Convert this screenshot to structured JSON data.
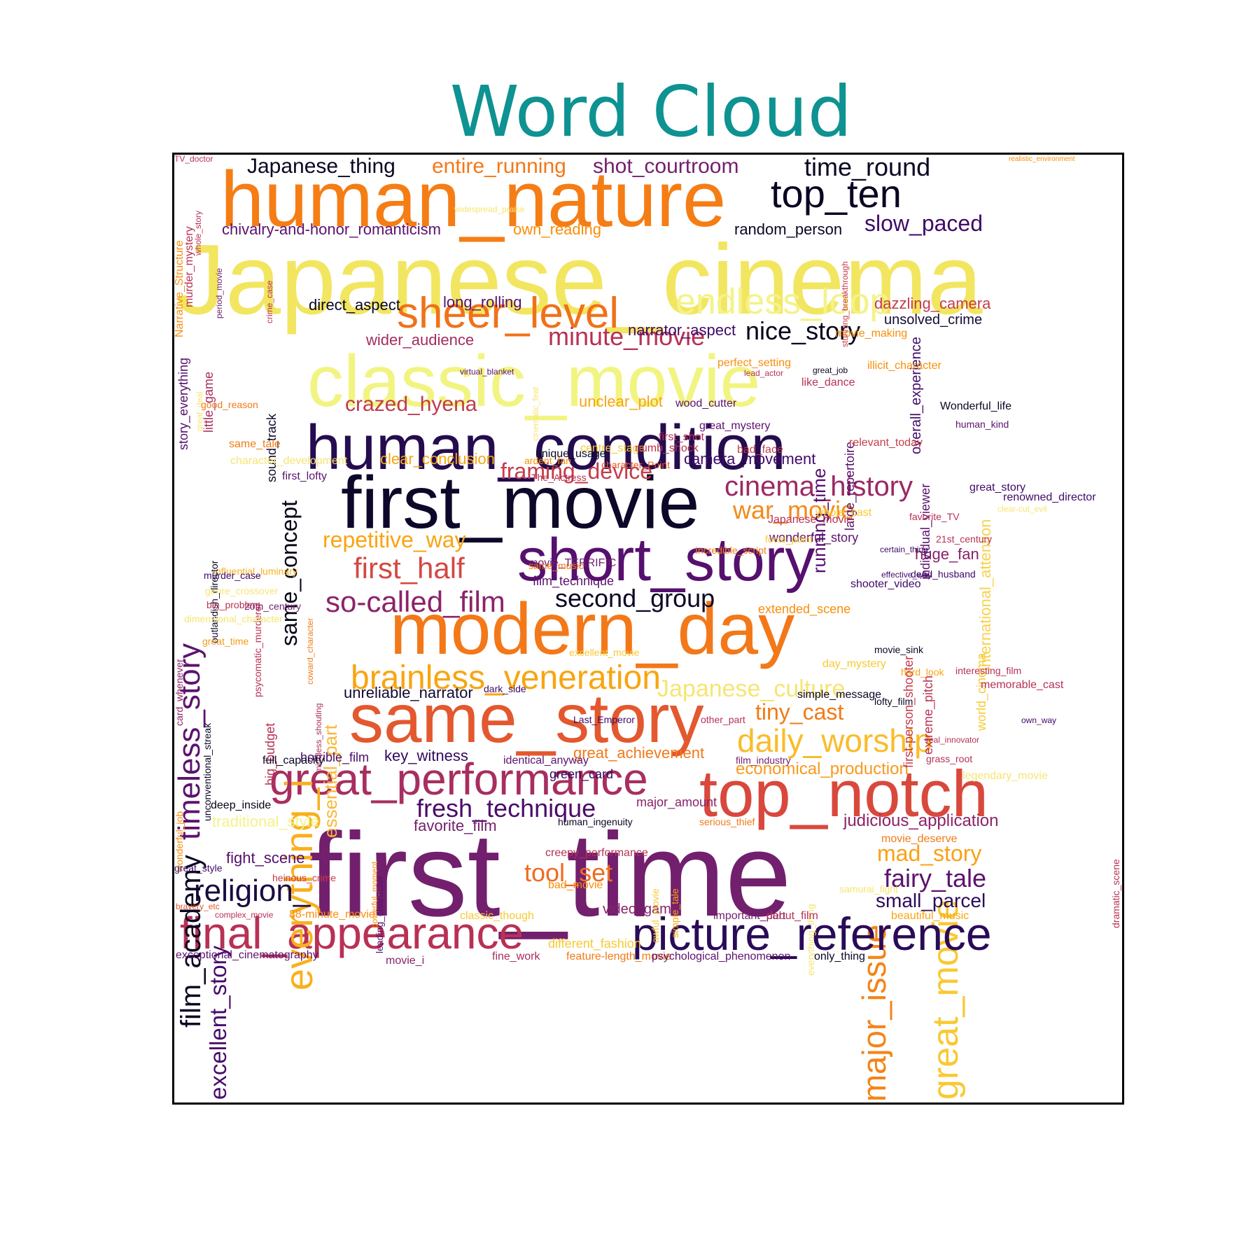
{
  "chart_data": {
    "type": "wordcloud",
    "title": "Word Cloud",
    "colormap": "inferno",
    "title_color": "#0e9292",
    "words": [
      {
        "text": "Japanese_cinema",
        "color": "#f2e661"
      },
      {
        "text": "first_time",
        "color": "#721f6e"
      },
      {
        "text": "human_nature",
        "color": "#f57d15"
      },
      {
        "text": "first_movie",
        "color": "#0d0829"
      },
      {
        "text": "excellent_story",
        "color": "#480b6a"
      },
      {
        "text": "major_issue",
        "color": "#f48417"
      },
      {
        "text": "human_condition",
        "color": "#240c4f"
      },
      {
        "text": "classic_movie",
        "color": "#f2f482"
      },
      {
        "text": "modern_day",
        "color": "#f37819"
      },
      {
        "text": "same_story",
        "color": "#e3582e"
      },
      {
        "text": "top_notch",
        "color": "#d9483d"
      },
      {
        "text": "short_story",
        "color": "#56106e"
      },
      {
        "text": "great_movie",
        "color": "#f8c932"
      },
      {
        "text": "picture_reference",
        "color": "#2a0b58"
      },
      {
        "text": "final_appearance",
        "color": "#b83155"
      },
      {
        "text": "great_performance",
        "color": "#a82e5f"
      },
      {
        "text": "sheer_level",
        "color": "#f07119"
      },
      {
        "text": "top_ten",
        "color": "#0a0623"
      },
      {
        "text": "everything_i",
        "color": "#f9b01e"
      },
      {
        "text": "endless_loop",
        "color": "#f3f38a"
      },
      {
        "text": "timeless_story",
        "color": "#5c126e"
      },
      {
        "text": "brainless_veneration",
        "color": "#f8a512"
      },
      {
        "text": "daily_worship",
        "color": "#f9bc2a"
      },
      {
        "text": "religion_",
        "color": "#1b0c41"
      },
      {
        "text": "film_academy",
        "color": "#0b0724"
      },
      {
        "text": "same_concept",
        "color": "#050417"
      },
      {
        "text": "so-called_film",
        "color": "#8c2369"
      },
      {
        "text": "first_half",
        "color": "#d44842"
      },
      {
        "text": "cinema_history",
        "color": "#9b2964"
      },
      {
        "text": "fresh_technique",
        "color": "#4a0c6b"
      },
      {
        "text": "repetitive_way",
        "color": "#f8a511"
      },
      {
        "text": "second_group",
        "color": "#0b0724"
      },
      {
        "text": "Japanese_culture",
        "color": "#f6e574"
      },
      {
        "text": "minute_movie",
        "color": "#b83155"
      },
      {
        "text": "nice_story",
        "color": "#06051d"
      },
      {
        "text": "war_movie",
        "color": "#f38a1a"
      },
      {
        "text": "tool_set",
        "color": "#f06b20"
      },
      {
        "text": "framing_device",
        "color": "#c53c4b"
      },
      {
        "text": "crazed_hyena",
        "color": "#c03a4e"
      },
      {
        "text": "fairy_tale",
        "color": "#5c126e"
      },
      {
        "text": "mad_story",
        "color": "#f9a116"
      },
      {
        "text": "tiny_cast",
        "color": "#f07b18"
      },
      {
        "text": "time_round",
        "color": "#0a0722"
      },
      {
        "text": "slow_paced",
        "color": "#3f0a68"
      },
      {
        "text": "shot_courtroom",
        "color": "#721f6e"
      },
      {
        "text": "entire_running",
        "color": "#f37819"
      },
      {
        "text": "Japanese_thing",
        "color": "#0a0722"
      },
      {
        "text": "running_time",
        "color": "#56106e"
      },
      {
        "text": "international_attention",
        "color": "#f8d14d"
      },
      {
        "text": "small_parcel",
        "color": "#2c0b5a"
      },
      {
        "text": "essential_part",
        "color": "#fbb735"
      },
      {
        "text": "economical_production",
        "color": "#f79a1c"
      },
      {
        "text": "judicious_application",
        "color": "#8c2369"
      },
      {
        "text": "chivalry-and-honor_romanticism",
        "color": "#5c126e"
      },
      {
        "text": "dazzling_camera",
        "color": "#c53c4b"
      },
      {
        "text": "unclear_plot",
        "color": "#f8a512"
      },
      {
        "text": "wider_audience",
        "color": "#a42c60"
      },
      {
        "text": "long_rolling",
        "color": "#56106e"
      },
      {
        "text": "own_reading",
        "color": "#f98e09"
      },
      {
        "text": "direct_aspect",
        "color": "#0b0724"
      },
      {
        "text": "narrator_aspect",
        "color": "#3f0a68"
      },
      {
        "text": "unsolved_crime",
        "color": "#140b34"
      },
      {
        "text": "random_person",
        "color": "#0b0724"
      },
      {
        "text": "great_achievement",
        "color": "#f37819"
      },
      {
        "text": "clear_conclusion",
        "color": "#f8a511"
      },
      {
        "text": "camera_movement",
        "color": "#3f0a68"
      },
      {
        "text": "huge_fan",
        "color": "#89226a"
      },
      {
        "text": "favorite_film",
        "color": "#721f6e"
      },
      {
        "text": "fight_scene",
        "color": "#56106e"
      },
      {
        "text": "key_witness",
        "color": "#320a5e"
      },
      {
        "text": "unreliable_narrator",
        "color": "#120a32"
      },
      {
        "text": "traditional_style",
        "color": "#f3f38a"
      },
      {
        "text": "overall_experience",
        "color": "#3f0a68"
      },
      {
        "text": "video_game",
        "color": "#89226a"
      },
      {
        "text": "sound_track",
        "color": "#0d0829"
      },
      {
        "text": "little_game",
        "color": "#a82e5f"
      },
      {
        "text": "story_everything",
        "color": "#56106e"
      },
      {
        "text": "film_technique",
        "color": "#5c126e"
      },
      {
        "text": "horrible_film",
        "color": "#480b6a"
      },
      {
        "text": "green_card",
        "color": "#320a5e"
      },
      {
        "text": "major_amount",
        "color": "#89226a"
      },
      {
        "text": "big_budget",
        "color": "#b83155"
      },
      {
        "text": "extreme_pitch",
        "color": "#b83155"
      },
      {
        "text": "first-person_shooter",
        "color": "#c53c4b"
      },
      {
        "text": "individual_viewer",
        "color": "#5c126e"
      },
      {
        "text": "large_repertoire",
        "color": "#56106e"
      },
      {
        "text": "world_cinema",
        "color": "#f8c932"
      },
      {
        "text": "extended_scene",
        "color": "#f98e09"
      },
      {
        "text": "wonderful_story",
        "color": "#5c126e"
      },
      {
        "text": "murder_mystery",
        "color": "#b83155"
      },
      {
        "text": "Narrative_Structure",
        "color": "#f98e09"
      },
      {
        "text": "whole_story",
        "color": "#b83155"
      },
      {
        "text": "period_movie",
        "color": "#721f6e"
      },
      {
        "text": "crime_case",
        "color": "#b83155"
      },
      {
        "text": "stunning_breakthrough",
        "color": "#c53c4b"
      },
      {
        "text": "great_deal",
        "color": "#f6e574"
      },
      {
        "text": "cinematic_feat",
        "color": "#f6e574"
      },
      {
        "text": "influential_luminary",
        "color": "#f9b01e"
      },
      {
        "text": "outlandish_director",
        "color": "#0b0724"
      },
      {
        "text": "psycomatic_murderer",
        "color": "#b83155"
      },
      {
        "text": "coward_character",
        "color": "#f07b18"
      },
      {
        "text": "card_whenever",
        "color": "#8c2369"
      },
      {
        "text": "unconventional_streak",
        "color": "#0b0724"
      },
      {
        "text": "wonderful_job",
        "color": "#f98e09"
      },
      {
        "text": "mindless_shouting",
        "color": "#a82e5f"
      },
      {
        "text": "powerful_moment",
        "color": "#f98e09"
      },
      {
        "text": "leading_character",
        "color": "#5c126e"
      },
      {
        "text": "awful_movie",
        "color": "#f8c932"
      },
      {
        "text": "simple_tale",
        "color": "#f8a512"
      },
      {
        "text": "everything_thing",
        "color": "#f6e574"
      },
      {
        "text": "dramatic_scene",
        "color": "#b83155"
      },
      {
        "text": "dimensional_character",
        "color": "#f6e574"
      },
      {
        "text": "great_time",
        "color": "#f79a1c"
      },
      {
        "text": "deep_inside",
        "color": "#050417"
      },
      {
        "text": "great_style",
        "color": "#3f0a68"
      },
      {
        "text": "heinous_crime",
        "color": "#c53c4b"
      },
      {
        "text": "bravery_etc",
        "color": "#e3582e"
      },
      {
        "text": "complex_movie",
        "color": "#b83155"
      },
      {
        "text": "exceptional_cinematography",
        "color": "#5c126e"
      },
      {
        "text": "88-minute_movie",
        "color": "#f98e09"
      },
      {
        "text": "classic_though",
        "color": "#f8c932"
      },
      {
        "text": "different_fashion",
        "color": "#f8c932"
      },
      {
        "text": "movie_i",
        "color": "#89226a"
      },
      {
        "text": "fine_work",
        "color": "#a82e5f"
      },
      {
        "text": "feature-length_movie",
        "color": "#f07b18"
      },
      {
        "text": "psychological_phenomenon",
        "color": "#5c126e"
      },
      {
        "text": "only_thing",
        "color": "#0b0724"
      },
      {
        "text": "important_part",
        "color": "#721f6e"
      },
      {
        "text": "debut_film",
        "color": "#b83155"
      },
      {
        "text": "beautiful_music",
        "color": "#f8a512"
      },
      {
        "text": "bad_movie",
        "color": "#f98e09"
      },
      {
        "text": "creepy_performance",
        "color": "#b83155"
      },
      {
        "text": "samurai_fight",
        "color": "#f6e574"
      },
      {
        "text": "serious_thief",
        "color": "#f07b18"
      },
      {
        "text": "human_ingenuity",
        "color": "#0b0724"
      },
      {
        "text": "identical_anyway",
        "color": "#5c126e"
      },
      {
        "text": "full_capacity",
        "color": "#0b0724"
      },
      {
        "text": "film_industry",
        "color": "#721f6e"
      },
      {
        "text": "grass_root",
        "color": "#b83155"
      },
      {
        "text": "legendary_movie",
        "color": "#f6e574"
      },
      {
        "text": "real_innovator",
        "color": "#b83155"
      },
      {
        "text": "own_way",
        "color": "#3f0a68"
      },
      {
        "text": "simple_message",
        "color": "#0b0724"
      },
      {
        "text": "lofty_film",
        "color": "#0b0724"
      },
      {
        "text": "other_part",
        "color": "#b83155"
      },
      {
        "text": "day_mystery",
        "color": "#f8c932"
      },
      {
        "text": "memorable_cast",
        "color": "#b83155"
      },
      {
        "text": "excellent_movie",
        "color": "#f8c932"
      },
      {
        "text": "movie_sink",
        "color": "#0b0724"
      },
      {
        "text": "movie_deserve",
        "color": "#f07b18"
      },
      {
        "text": "interesting_film",
        "color": "#b83155"
      },
      {
        "text": "focal_point",
        "color": "#f8c932"
      },
      {
        "text": "shooter_video",
        "color": "#3f0a68"
      },
      {
        "text": "dead_husband",
        "color": "#3f0a68"
      },
      {
        "text": "movie_TERRIFIC",
        "color": "#721f6e"
      },
      {
        "text": "dark_side",
        "color": "#3f0a68"
      },
      {
        "text": "20th_century",
        "color": "#721f6e"
      },
      {
        "text": "effective_way",
        "color": "#3f0a68"
      },
      {
        "text": "hard_look",
        "color": "#f8a512"
      },
      {
        "text": "murder_case",
        "color": "#3f0a68"
      },
      {
        "text": "genre_crossover",
        "color": "#f6e574"
      },
      {
        "text": "big_problem",
        "color": "#b83155"
      },
      {
        "text": "same_music",
        "color": "#f07b18"
      },
      {
        "text": "Last_Emperor",
        "color": "#3f0a68"
      },
      {
        "text": "21st_century",
        "color": "#b83155"
      },
      {
        "text": "favorite_TV",
        "color": "#b83155"
      },
      {
        "text": "Japanese_movie",
        "color": "#b83155"
      },
      {
        "text": "movie_making",
        "color": "#f98e09"
      },
      {
        "text": "good_reason",
        "color": "#f07b18"
      },
      {
        "text": "same_tale",
        "color": "#f07b18"
      },
      {
        "text": "character_development",
        "color": "#f6e574"
      },
      {
        "text": "first_lofty",
        "color": "#5c126e"
      },
      {
        "text": "Incredible_script",
        "color": "#f07b18"
      },
      {
        "text": "certain_thing",
        "color": "#3f0a68"
      },
      {
        "text": "renowned_director",
        "color": "#3f0a68"
      },
      {
        "text": "clear-cut_evil",
        "color": "#f6e574"
      },
      {
        "text": "great_story",
        "color": "#3f0a68"
      },
      {
        "text": "whole_cast",
        "color": "#f8c932"
      },
      {
        "text": "relevant_today",
        "color": "#c53c4b"
      },
      {
        "text": "bad_face",
        "color": "#c53c4b"
      },
      {
        "text": "character_Point",
        "color": "#e3582e"
      },
      {
        "text": "centre_stage",
        "color": "#f8c932"
      },
      {
        "text": "ardent_fan",
        "color": "#f98e09"
      },
      {
        "text": "unique_usage",
        "color": "#0b0724"
      },
      {
        "text": "great_mystery",
        "color": "#5c126e"
      },
      {
        "text": "The_Actress",
        "color": "#b83155"
      },
      {
        "text": "first_shot",
        "color": "#b83155"
      },
      {
        "text": "wood_cutter",
        "color": "#5c126e"
      },
      {
        "text": "numb_shock",
        "color": "#b83155"
      },
      {
        "text": "widespread_praise",
        "color": "#f6e574"
      },
      {
        "text": "virtual_blanket",
        "color": "#5c126e"
      },
      {
        "text": "like_dance",
        "color": "#b83155"
      },
      {
        "text": "great_job",
        "color": "#0b0724"
      },
      {
        "text": "perfect_setting",
        "color": "#f98e09"
      },
      {
        "text": "lead_actor",
        "color": "#b83155"
      },
      {
        "text": "illicit_character",
        "color": "#f98e09"
      },
      {
        "text": "realistic_environment",
        "color": "#f98e09"
      },
      {
        "text": "Wonderful_life",
        "color": "#0b0724"
      },
      {
        "text": "human_kind",
        "color": "#5c126e"
      },
      {
        "text": "TV_doctor",
        "color": "#b83155"
      }
    ]
  }
}
